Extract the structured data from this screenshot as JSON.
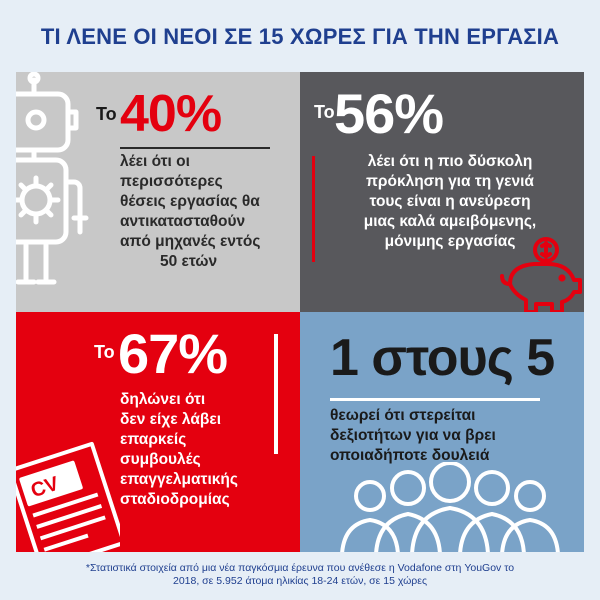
{
  "title": "ΤΙ ΛΕΝΕ ΟΙ ΝΕΟΙ ΣΕ 15 ΧΩΡΕΣ ΓΙΑ ΤΗΝ ΕΡΓΑΣΙΑ",
  "stats": {
    "s1": {
      "prefix": "Το",
      "value": "40%",
      "lines": [
        "λέει ότι οι",
        "περισσότερες",
        "θέσεις εργασίας θα",
        "αντικατασταθούν",
        "από μηχανές εντός",
        "50 ετών"
      ]
    },
    "s2": {
      "prefix": "Το",
      "value": "56%",
      "lines": [
        "λέει ότι η πιο δύσκολη",
        "πρόκληση για τη γενιά",
        "τους είναι η ανεύρεση",
        "μιας καλά αμειβόμενης,",
        "μόνιμης εργασίας"
      ]
    },
    "s3": {
      "prefix": "Το",
      "value": "67%",
      "lines": [
        "δηλώνει ότι",
        "δεν είχε λάβει",
        "επαρκείς",
        "συμβουλές",
        "επαγγελματικής",
        "σταδιοδρομίας"
      ]
    },
    "s4": {
      "value": "1 στους 5",
      "lines": [
        "θεωρεί ότι στερείται",
        "δεξιοτήτων για να βρει",
        "οποιαδήποτε δουλειά"
      ]
    }
  },
  "icons": {
    "robot": "robot-icon",
    "piggy": "piggy-bank-icon",
    "cv": "cv-document-icon",
    "people": "people-group-icon",
    "cv_text": "CV"
  },
  "colors": {
    "brand_red": "#e4000f",
    "title_blue": "#1f3f8f",
    "panel_gray": "#c8c8c8",
    "panel_dark": "#58585c",
    "panel_blue": "#7aa3c8"
  },
  "footnote": {
    "line1": "*Στατιστικά στοιχεία από μια νέα παγκόσμια έρευνα που ανέθεσε η Vodafone στη YouGov το",
    "line2": "2018, σε 5.952 άτομα ηλικίας 18-24 ετών, σε 15 χώρες"
  }
}
